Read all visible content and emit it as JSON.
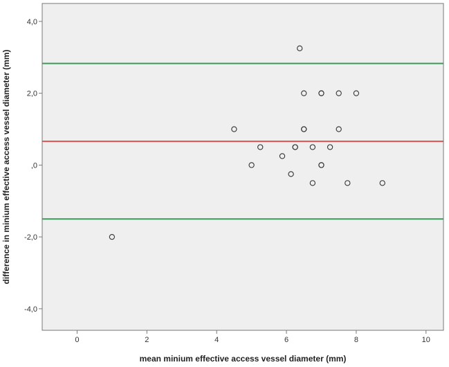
{
  "chart_data": {
    "type": "scatter",
    "title": "",
    "xlabel": "mean minium effective access vessel diameter (mm)",
    "ylabel": "difference in minium effective access vessel diameter (mm)",
    "xlim": [
      -1,
      10.5
    ],
    "ylim": [
      -4.6,
      4.5
    ],
    "x_ticks": [
      0,
      2,
      4,
      6,
      8,
      10
    ],
    "x_tick_labels": [
      "0",
      "2",
      "4",
      "6",
      "8",
      "10"
    ],
    "y_ticks": [
      4,
      2,
      0,
      -2,
      -4
    ],
    "y_tick_labels": [
      "4,0",
      "2,0",
      ",0",
      "-2,0",
      "-4,0"
    ],
    "grid": false,
    "points": [
      {
        "x": 1.0,
        "y": -2.0
      },
      {
        "x": 4.5,
        "y": 1.0
      },
      {
        "x": 5.0,
        "y": 0.0
      },
      {
        "x": 5.25,
        "y": 0.5
      },
      {
        "x": 5.88,
        "y": 0.25
      },
      {
        "x": 6.13,
        "y": -0.25
      },
      {
        "x": 6.25,
        "y": 0.5
      },
      {
        "x": 6.25,
        "y": 0.5
      },
      {
        "x": 6.38,
        "y": 3.25
      },
      {
        "x": 6.5,
        "y": 2.0
      },
      {
        "x": 6.5,
        "y": 1.0
      },
      {
        "x": 6.5,
        "y": 1.0
      },
      {
        "x": 6.75,
        "y": 0.5
      },
      {
        "x": 6.75,
        "y": -0.5
      },
      {
        "x": 7.0,
        "y": 2.0
      },
      {
        "x": 7.0,
        "y": 2.0
      },
      {
        "x": 7.0,
        "y": 0.0
      },
      {
        "x": 7.0,
        "y": 0.0
      },
      {
        "x": 7.25,
        "y": 0.5
      },
      {
        "x": 7.5,
        "y": 2.0
      },
      {
        "x": 7.5,
        "y": 1.0
      },
      {
        "x": 7.75,
        "y": -0.5
      },
      {
        "x": 8.0,
        "y": 2.0
      },
      {
        "x": 8.75,
        "y": -0.5
      }
    ],
    "reference_lines": [
      {
        "y": 2.83,
        "color": "#3a9a5b"
      },
      {
        "y": 0.66,
        "color": "#d9534f"
      },
      {
        "y": -1.5,
        "color": "#3a9a5b"
      }
    ],
    "colors": {
      "plot_background": "#efefef",
      "frame": "#777777",
      "marker_stroke": "#333333"
    }
  }
}
